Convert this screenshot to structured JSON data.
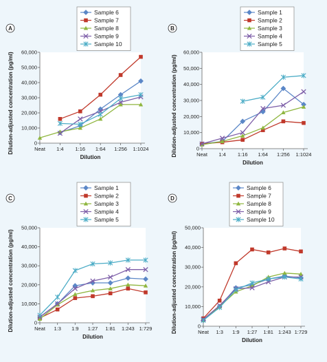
{
  "chart_data": [
    {
      "panel_label": "A",
      "type": "line",
      "xlabel": "Dilution",
      "ylabel": "Dilution-adjusted concentration (pg/ml)",
      "categories": [
        "Neat",
        "1:4",
        "1:16",
        "1:64",
        "1:256",
        "1:1024"
      ],
      "ylim": [
        0,
        60000
      ],
      "yticks": [
        0,
        10000,
        20000,
        30000,
        40000,
        50000,
        60000
      ],
      "ytick_labels": [
        "0",
        "10,000",
        "20,000",
        "30,000",
        "40,000",
        "50,000",
        "60,000"
      ],
      "grid": false,
      "legend_position": "top",
      "series": [
        {
          "name": "Sample 6",
          "color": "#5b87c7",
          "marker": "diamond",
          "values": [
            null,
            7000,
            11500,
            22500,
            32000,
            41000
          ]
        },
        {
          "name": "Sample 7",
          "color": "#c0392b",
          "marker": "square",
          "values": [
            null,
            16000,
            21000,
            32000,
            45000,
            57000
          ]
        },
        {
          "name": "Sample 8",
          "color": "#8fb63f",
          "marker": "triangle",
          "values": [
            3500,
            7500,
            10000,
            16000,
            25500,
            25500
          ]
        },
        {
          "name": "Sample 9",
          "color": "#7d5ea8",
          "marker": "x",
          "values": [
            null,
            6500,
            16000,
            21000,
            27000,
            30500
          ]
        },
        {
          "name": "Sample 10",
          "color": "#4bacc6",
          "marker": "star",
          "values": [
            null,
            13000,
            12500,
            19000,
            29500,
            32000
          ]
        }
      ]
    },
    {
      "panel_label": "B",
      "type": "line",
      "xlabel": "Dilution",
      "ylabel": "Dilution-adjusted concentration (pg/ml)",
      "categories": [
        "Neat",
        "1:4",
        "1:16",
        "1:64",
        "1:256",
        "1:1024"
      ],
      "ylim": [
        0,
        60000
      ],
      "yticks": [
        0,
        10000,
        20000,
        30000,
        40000,
        50000,
        60000
      ],
      "ytick_labels": [
        "0",
        "10,000",
        "20,000",
        "30,000",
        "40,000",
        "50,000",
        "60,000"
      ],
      "grid": false,
      "legend_position": "top",
      "series": [
        {
          "name": "Sample 1",
          "color": "#5b87c7",
          "marker": "diamond",
          "values": [
            3000,
            4500,
            17000,
            23000,
            37500,
            27500
          ]
        },
        {
          "name": "Sample 2",
          "color": "#c0392b",
          "marker": "square",
          "values": [
            3000,
            4000,
            5500,
            11500,
            17000,
            16000
          ]
        },
        {
          "name": "Sample 3",
          "color": "#8fb63f",
          "marker": "triangle",
          "values": [
            2500,
            4500,
            8000,
            13000,
            22500,
            26000
          ]
        },
        {
          "name": "Sample 4",
          "color": "#7d5ea8",
          "marker": "x",
          "values": [
            3000,
            6500,
            10000,
            25000,
            27000,
            35500
          ]
        },
        {
          "name": "Sample 5",
          "color": "#4bacc6",
          "marker": "star",
          "values": [
            null,
            null,
            29500,
            32000,
            44500,
            45500
          ]
        }
      ]
    },
    {
      "panel_label": "C",
      "type": "line",
      "xlabel": "Dilution",
      "ylabel": "Dilution-adjusted concentration (pg/ml)",
      "categories": [
        "Neat",
        "1:3",
        "1:9",
        "1:27",
        "1:81",
        "1:243",
        "1:729"
      ],
      "ylim": [
        0,
        50000
      ],
      "yticks": [
        0,
        10000,
        20000,
        30000,
        40000,
        50000
      ],
      "ytick_labels": [
        "0",
        "10,000",
        "20,000",
        "30,000",
        "40,000",
        "50,000"
      ],
      "grid": false,
      "legend_position": "top",
      "series": [
        {
          "name": "Sample 1",
          "color": "#5b87c7",
          "marker": "diamond",
          "values": [
            3000,
            10000,
            19500,
            21000,
            21000,
            23500,
            23000
          ]
        },
        {
          "name": "Sample 2",
          "color": "#c0392b",
          "marker": "square",
          "values": [
            2500,
            7000,
            13000,
            14000,
            15500,
            18000,
            16000
          ]
        },
        {
          "name": "Sample 3",
          "color": "#8fb63f",
          "marker": "triangle",
          "values": [
            2000,
            9500,
            15000,
            17000,
            18000,
            20000,
            19500
          ]
        },
        {
          "name": "Sample 4",
          "color": "#7d5ea8",
          "marker": "x",
          "values": [
            3000,
            10000,
            18000,
            22000,
            24000,
            28000,
            28000
          ]
        },
        {
          "name": "Sample 5",
          "color": "#4bacc6",
          "marker": "star",
          "values": [
            4000,
            13500,
            27500,
            31000,
            31500,
            33000,
            33000
          ]
        }
      ]
    },
    {
      "panel_label": "D",
      "type": "line",
      "xlabel": "Dilution",
      "ylabel": "Dilution-adjusted concentration (pg/ml)",
      "categories": [
        "Neat",
        "1:3",
        "1:9",
        "1:27",
        "1:81",
        "1:243",
        "1:729"
      ],
      "ylim": [
        0,
        50000
      ],
      "yticks": [
        0,
        10000,
        20000,
        30000,
        40000,
        50000
      ],
      "ytick_labels": [
        "0",
        "10,000",
        "20,000",
        "30,000",
        "40,000",
        "50,000"
      ],
      "grid": false,
      "legend_position": "top",
      "series": [
        {
          "name": "Sample 6",
          "color": "#5b87c7",
          "marker": "diamond",
          "values": [
            3000,
            10000,
            19500,
            21000,
            24000,
            25500,
            24500
          ]
        },
        {
          "name": "Sample 7",
          "color": "#c0392b",
          "marker": "square",
          "values": [
            4000,
            13000,
            32000,
            39000,
            37500,
            39500,
            38000
          ]
        },
        {
          "name": "Sample 8",
          "color": "#8fb63f",
          "marker": "triangle",
          "values": [
            3000,
            10000,
            17500,
            20500,
            25000,
            27000,
            26500
          ]
        },
        {
          "name": "Sample 9",
          "color": "#7d5ea8",
          "marker": "x",
          "values": [
            3500,
            10500,
            19000,
            19500,
            22500,
            25000,
            25000
          ]
        },
        {
          "name": "Sample 10",
          "color": "#4bacc6",
          "marker": "star",
          "values": [
            3000,
            9500,
            18500,
            22000,
            24000,
            25000,
            24000
          ]
        }
      ]
    }
  ]
}
